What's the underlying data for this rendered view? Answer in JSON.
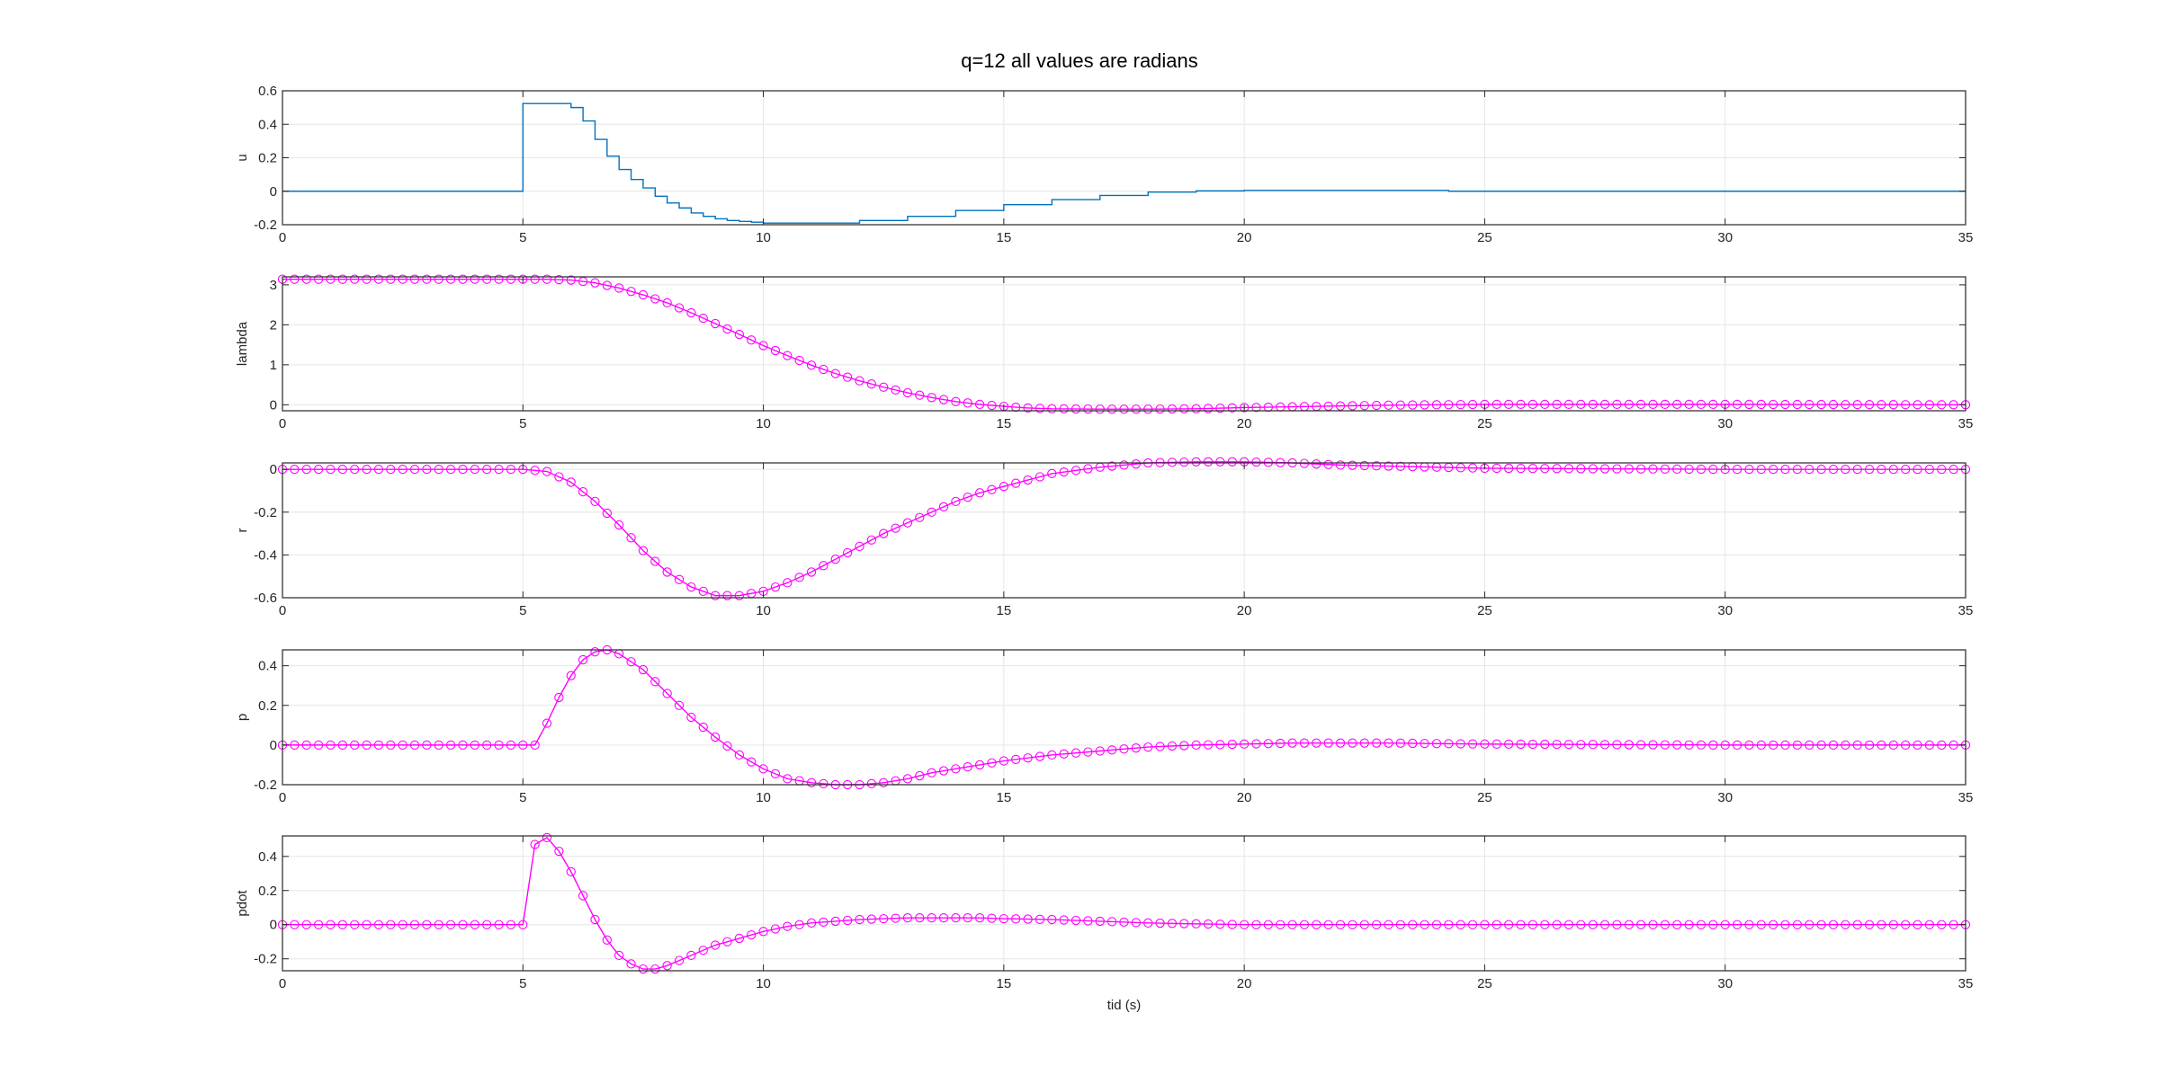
{
  "figure": {
    "title": "q=12   all values are radians",
    "background": "#ffffff",
    "grid": true
  },
  "colors": {
    "input_line": "#0072bd",
    "state_marker": "#ff00ff",
    "grid": "#e6e6e6",
    "axes": "#262626"
  },
  "chart_data": [
    {
      "type": "line",
      "ylabel": "u",
      "xlabel": "",
      "xlim": [
        0,
        35
      ],
      "ylim": [
        -0.2,
        0.6
      ],
      "xticks": [
        0,
        5,
        10,
        15,
        20,
        25,
        30,
        35
      ],
      "yticks": [
        -0.2,
        0,
        0.2,
        0.4,
        0.6
      ],
      "tick_labels": [
        "-0.2",
        "0",
        "0.2",
        "0.4",
        "0.6"
      ],
      "step": true,
      "marker": "none",
      "x": [
        0,
        5,
        5.25,
        5.5,
        5.75,
        6,
        6.25,
        6.5,
        6.75,
        7,
        7.25,
        7.5,
        7.75,
        8,
        8.25,
        8.5,
        8.75,
        9,
        9.25,
        9.5,
        9.75,
        10,
        11,
        12,
        13,
        14,
        15,
        16,
        17,
        18,
        19,
        20,
        22,
        24.25,
        26,
        30,
        35
      ],
      "y": [
        0,
        0.524,
        0.524,
        0.524,
        0.524,
        0.5,
        0.42,
        0.31,
        0.21,
        0.13,
        0.07,
        0.02,
        -0.03,
        -0.07,
        -0.1,
        -0.13,
        -0.15,
        -0.165,
        -0.175,
        -0.18,
        -0.185,
        -0.19,
        -0.19,
        -0.175,
        -0.15,
        -0.115,
        -0.08,
        -0.05,
        -0.025,
        -0.005,
        0.002,
        0.005,
        0.005,
        0,
        0,
        0,
        0
      ]
    },
    {
      "type": "line",
      "ylabel": "lambda",
      "xlabel": "",
      "xlim": [
        0,
        35
      ],
      "ylim": [
        -0.15,
        3.2
      ],
      "xticks": [
        0,
        5,
        10,
        15,
        20,
        25,
        30,
        35
      ],
      "yticks": [
        0,
        1,
        2,
        3
      ],
      "tick_labels": [
        "0",
        "1",
        "2",
        "3"
      ],
      "step": false,
      "marker": "circle",
      "x": [
        0,
        5,
        5.5,
        6,
        6.5,
        7,
        7.5,
        8,
        8.5,
        9,
        9.5,
        10,
        10.5,
        11,
        11.5,
        12,
        12.5,
        13,
        13.5,
        14,
        14.5,
        15,
        15.5,
        16,
        17,
        18,
        19,
        20,
        21,
        22,
        23,
        24,
        25,
        30,
        35
      ],
      "y": [
        3.14,
        3.14,
        3.14,
        3.12,
        3.05,
        2.92,
        2.75,
        2.55,
        2.3,
        2.03,
        1.76,
        1.48,
        1.23,
        0.99,
        0.78,
        0.6,
        0.44,
        0.3,
        0.18,
        0.08,
        0.01,
        -0.04,
        -0.08,
        -0.1,
        -0.11,
        -0.11,
        -0.1,
        -0.07,
        -0.05,
        -0.03,
        -0.01,
        0,
        0.01,
        0.01,
        0
      ]
    },
    {
      "type": "line",
      "ylabel": "r",
      "xlabel": "",
      "xlim": [
        0,
        35
      ],
      "ylim": [
        -0.6,
        0.03
      ],
      "xticks": [
        0,
        5,
        10,
        15,
        20,
        25,
        30,
        35
      ],
      "yticks": [
        -0.6,
        -0.4,
        -0.2,
        0
      ],
      "tick_labels": [
        "-0.6",
        "-0.4",
        "-0.2",
        "0"
      ],
      "step": false,
      "marker": "circle",
      "x": [
        0,
        5,
        5.5,
        6,
        6.5,
        7,
        7.5,
        8,
        8.5,
        9,
        9.5,
        10,
        10.5,
        11,
        11.5,
        12,
        12.5,
        13,
        13.5,
        14,
        14.5,
        15,
        15.5,
        16,
        17,
        18,
        19,
        20,
        21,
        22,
        23,
        24,
        25,
        30,
        35
      ],
      "y": [
        0,
        0,
        -0.01,
        -0.06,
        -0.15,
        -0.26,
        -0.38,
        -0.48,
        -0.55,
        -0.59,
        -0.59,
        -0.57,
        -0.53,
        -0.48,
        -0.42,
        -0.36,
        -0.3,
        -0.25,
        -0.2,
        -0.15,
        -0.11,
        -0.08,
        -0.05,
        -0.02,
        0.01,
        0.03,
        0.035,
        0.035,
        0.03,
        0.02,
        0.015,
        0.01,
        0.005,
        0,
        0
      ]
    },
    {
      "type": "line",
      "ylabel": "p",
      "xlabel": "",
      "xlim": [
        0,
        35
      ],
      "ylim": [
        -0.2,
        0.48
      ],
      "xticks": [
        0,
        5,
        10,
        15,
        20,
        25,
        30,
        35
      ],
      "yticks": [
        -0.2,
        0,
        0.2,
        0.4
      ],
      "tick_labels": [
        "-0.2",
        "0",
        "0.2",
        "0.4"
      ],
      "step": false,
      "marker": "circle",
      "x": [
        0,
        5,
        5.25,
        5.5,
        5.75,
        6,
        6.25,
        6.5,
        6.75,
        7,
        7.5,
        8,
        8.5,
        9,
        9.5,
        10,
        10.5,
        11,
        11.5,
        12,
        12.5,
        13,
        13.5,
        14,
        15,
        16,
        17,
        18,
        19,
        20,
        21,
        22,
        23,
        25,
        30,
        35
      ],
      "y": [
        0,
        0,
        0,
        0.11,
        0.24,
        0.35,
        0.43,
        0.47,
        0.48,
        0.46,
        0.38,
        0.26,
        0.14,
        0.04,
        -0.05,
        -0.12,
        -0.17,
        -0.19,
        -0.2,
        -0.2,
        -0.19,
        -0.17,
        -0.14,
        -0.12,
        -0.08,
        -0.05,
        -0.03,
        -0.01,
        0,
        0.005,
        0.01,
        0.01,
        0.01,
        0.005,
        0,
        0
      ]
    },
    {
      "type": "line",
      "ylabel": "pdot",
      "xlabel": "tid (s)",
      "xlim": [
        0,
        35
      ],
      "ylim": [
        -0.27,
        0.52
      ],
      "xticks": [
        0,
        5,
        10,
        15,
        20,
        25,
        30,
        35
      ],
      "yticks": [
        -0.2,
        0,
        0.2,
        0.4
      ],
      "tick_labels": [
        "-0.2",
        "0",
        "0.2",
        "0.4"
      ],
      "step": false,
      "marker": "circle",
      "x": [
        0,
        5,
        5.25,
        5.5,
        5.75,
        6,
        6.25,
        6.5,
        6.75,
        7,
        7.25,
        7.5,
        7.75,
        8,
        8.5,
        9,
        9.5,
        10,
        10.5,
        11,
        11.5,
        12,
        12.5,
        13,
        13.5,
        14,
        14.5,
        15,
        16,
        17,
        18,
        19,
        20,
        22,
        25,
        30,
        35
      ],
      "y": [
        0,
        0,
        0.47,
        0.51,
        0.43,
        0.31,
        0.17,
        0.03,
        -0.09,
        -0.18,
        -0.23,
        -0.26,
        -0.26,
        -0.24,
        -0.18,
        -0.12,
        -0.08,
        -0.04,
        -0.01,
        0.01,
        0.02,
        0.03,
        0.035,
        0.04,
        0.04,
        0.04,
        0.04,
        0.035,
        0.03,
        0.02,
        0.01,
        0.005,
        0,
        0,
        0,
        0,
        0
      ]
    }
  ]
}
